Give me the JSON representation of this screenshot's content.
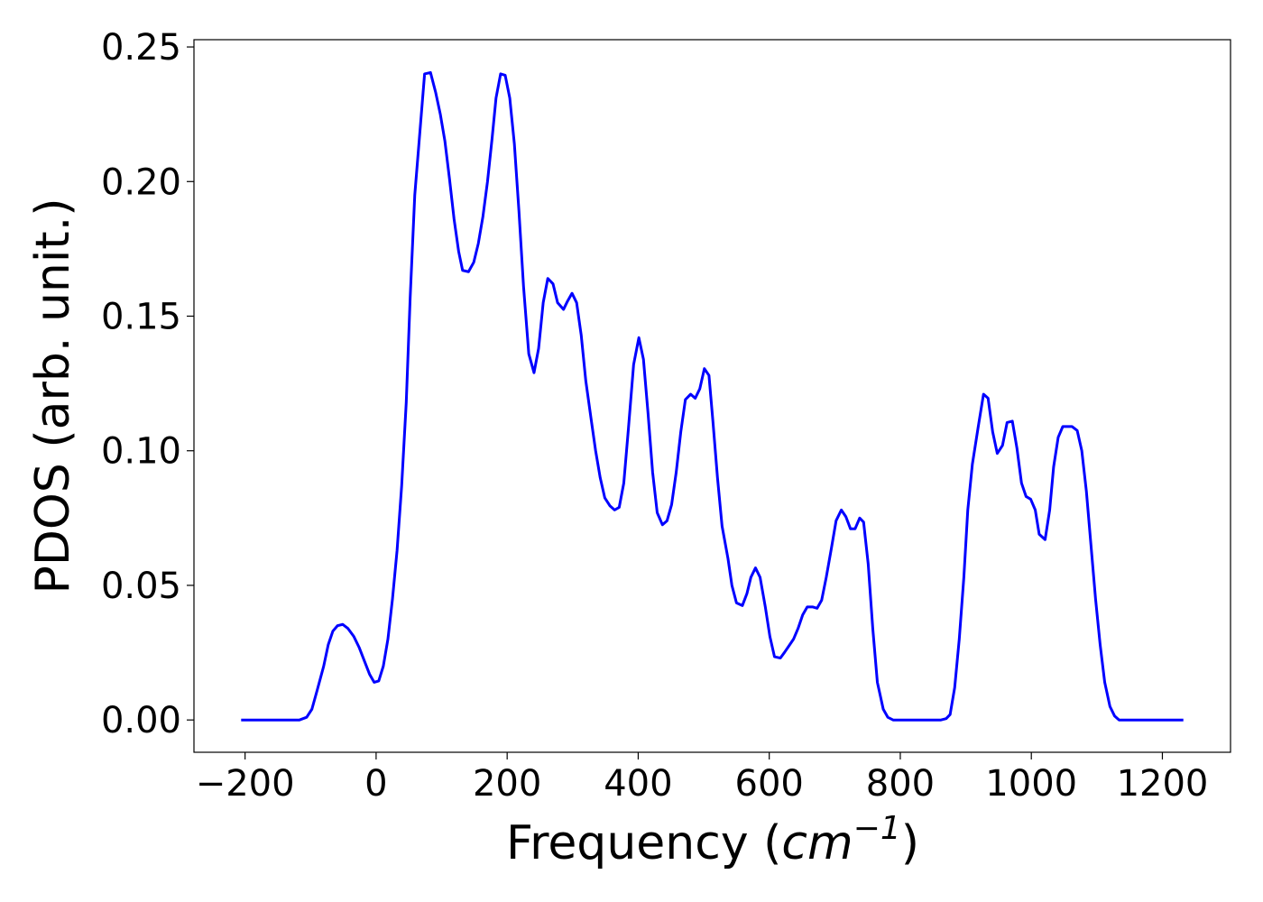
{
  "chart_data": {
    "type": "line",
    "ylabel": "PDOS (arb. unit.)",
    "xlabel": {
      "text": "Frequency (",
      "unit": "cm",
      "exponent": "−1",
      "close": ")"
    },
    "xlim": [
      -278,
      1304
    ],
    "ylim": [
      -0.012,
      0.2527
    ],
    "xticks": [
      {
        "value": -200,
        "label": "−200"
      },
      0,
      200,
      400,
      600,
      800,
      1000,
      1200
    ],
    "yticks": [
      {
        "value": 0,
        "label": "0.00"
      },
      {
        "value": 0.05,
        "label": "0.05"
      },
      {
        "value": 0.1,
        "label": "0.10"
      },
      {
        "value": 0.15,
        "label": "0.15"
      },
      {
        "value": 0.2,
        "label": "0.20"
      },
      {
        "value": 0.25,
        "label": "0.25"
      }
    ],
    "grid": false,
    "series": [
      {
        "color": "#0000ff",
        "x": [
          -206,
          -117,
          -106,
          -98,
          -90,
          -80,
          -73,
          -66,
          -59,
          -51,
          -43,
          -34,
          -26,
          -18,
          -10,
          -3,
          4,
          11,
          18,
          25,
          32,
          39,
          46,
          52,
          59,
          68,
          74,
          83,
          91,
          98,
          105,
          112,
          119,
          126,
          132,
          141,
          149,
          156,
          163,
          170,
          177,
          183,
          190,
          197,
          204,
          211,
          218,
          225,
          233,
          241,
          248,
          255,
          262,
          270,
          277,
          286,
          292,
          299,
          306,
          313,
          320,
          328,
          335,
          342,
          349,
          357,
          364,
          371,
          378,
          385,
          393,
          401,
          408,
          415,
          422,
          429,
          437,
          444,
          451,
          458,
          465,
          472,
          480,
          487,
          494,
          501,
          508,
          514,
          521,
          528,
          537,
          543,
          550,
          559,
          566,
          572,
          579,
          586,
          594,
          601,
          608,
          617,
          623,
          630,
          637,
          644,
          651,
          658,
          666,
          673,
          680,
          687,
          695,
          702,
          710,
          717,
          724,
          731,
          738,
          744,
          751,
          758,
          765,
          774,
          781,
          789,
          862,
          870,
          876,
          883,
          890,
          897,
          903,
          910,
          919,
          927,
          934,
          941,
          948,
          956,
          963,
          971,
          978,
          985,
          992,
          999,
          1006,
          1012,
          1021,
          1028,
          1034,
          1041,
          1048,
          1055,
          1062,
          1070,
          1077,
          1084,
          1091,
          1098,
          1105,
          1112,
          1120,
          1127,
          1134,
          1232
        ],
        "values": [
          0,
          0,
          0.001,
          0.004,
          0.011,
          0.02,
          0.028,
          0.033,
          0.035,
          0.0355,
          0.034,
          0.031,
          0.027,
          0.022,
          0.017,
          0.014,
          0.0145,
          0.02,
          0.03,
          0.045,
          0.063,
          0.087,
          0.118,
          0.157,
          0.195,
          0.222,
          0.24,
          0.2405,
          0.233,
          0.225,
          0.215,
          0.201,
          0.186,
          0.174,
          0.167,
          0.1665,
          0.17,
          0.177,
          0.187,
          0.2,
          0.216,
          0.231,
          0.24,
          0.2395,
          0.231,
          0.214,
          0.189,
          0.161,
          0.136,
          0.129,
          0.138,
          0.155,
          0.164,
          0.162,
          0.155,
          0.1525,
          0.1555,
          0.1585,
          0.155,
          0.143,
          0.126,
          0.112,
          0.1,
          0.09,
          0.0825,
          0.0795,
          0.078,
          0.079,
          0.088,
          0.108,
          0.132,
          0.142,
          0.134,
          0.114,
          0.092,
          0.077,
          0.0725,
          0.074,
          0.08,
          0.092,
          0.107,
          0.119,
          0.121,
          0.1195,
          0.123,
          0.1305,
          0.128,
          0.111,
          0.09,
          0.072,
          0.06,
          0.05,
          0.0435,
          0.0425,
          0.047,
          0.053,
          0.0565,
          0.053,
          0.042,
          0.031,
          0.0235,
          0.023,
          0.025,
          0.0275,
          0.03,
          0.034,
          0.039,
          0.042,
          0.042,
          0.0415,
          0.0445,
          0.053,
          0.064,
          0.074,
          0.078,
          0.0755,
          0.071,
          0.071,
          0.075,
          0.0735,
          0.058,
          0.034,
          0.014,
          0.004,
          0.001,
          0,
          0,
          0.0005,
          0.002,
          0.012,
          0.03,
          0.053,
          0.078,
          0.095,
          0.109,
          0.121,
          0.1195,
          0.107,
          0.099,
          0.102,
          0.1105,
          0.111,
          0.101,
          0.088,
          0.083,
          0.082,
          0.078,
          0.069,
          0.067,
          0.078,
          0.094,
          0.105,
          0.109,
          0.109,
          0.109,
          0.1075,
          0.1,
          0.085,
          0.065,
          0.045,
          0.028,
          0.014,
          0.005,
          0.0015,
          0,
          0
        ]
      }
    ]
  }
}
